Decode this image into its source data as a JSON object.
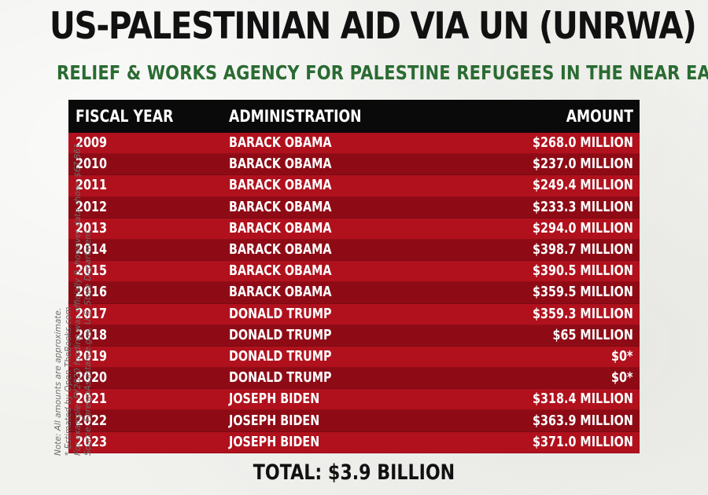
{
  "header": {
    "title": "US-PALESTINIAN AID VIA UN (UNRWA)",
    "subtitle": "RELIEF & WORKS AGENCY FOR PALESTINE REFUGEES IN THE NEAR EAST"
  },
  "table": {
    "columns": [
      "FISCAL YEAR",
      "ADMINISTRATION",
      "AMOUNT"
    ],
    "rows": [
      {
        "year": "2009",
        "administration": "BARACK OBAMA",
        "amount": "$268.0 MILLION"
      },
      {
        "year": "2010",
        "administration": "BARACK OBAMA",
        "amount": "$237.0 MILLION"
      },
      {
        "year": "2011",
        "administration": "BARACK OBAMA",
        "amount": "$249.4 MILLION"
      },
      {
        "year": "2012",
        "administration": "BARACK OBAMA",
        "amount": "$233.3 MILLION"
      },
      {
        "year": "2013",
        "administration": "BARACK OBAMA",
        "amount": "$294.0 MILLION"
      },
      {
        "year": "2014",
        "administration": "BARACK OBAMA",
        "amount": "$398.7 MILLION"
      },
      {
        "year": "2015",
        "administration": "BARACK OBAMA",
        "amount": "$390.5 MILLION"
      },
      {
        "year": "2016",
        "administration": "BARACK OBAMA",
        "amount": "$359.5 MILLION"
      },
      {
        "year": "2017",
        "administration": "DONALD TRUMP",
        "amount": "$359.3 MILLION"
      },
      {
        "year": "2018",
        "administration": "DONALD TRUMP",
        "amount": "$65 MILLION"
      },
      {
        "year": "2019",
        "administration": "DONALD TRUMP",
        "amount": "$0*"
      },
      {
        "year": "2020",
        "administration": "DONALD TRUMP",
        "amount": "$0*"
      },
      {
        "year": "2021",
        "administration": "JOSEPH BIDEN",
        "amount": "$318.4 MILLION"
      },
      {
        "year": "2022",
        "administration": "JOSEPH BIDEN",
        "amount": "$363.9 MILLION"
      },
      {
        "year": "2023",
        "administration": "JOSEPH BIDEN",
        "amount": "$371.0 MILLION"
      }
    ]
  },
  "total": "TOTAL: $3.9 BILLION",
  "notes": [
    "Note: All amounts are approximate.",
    "* Estimated by Open TheBooks.com -",
    "For example: FY2020 funding was officially 0, however data shows $67,861.",
    "Source: ForeignAssistance.gov, U.S. State Department"
  ],
  "colors": {
    "title": "#111111",
    "subtitle": "#2a6b32",
    "header_bg": "#0a0a0a",
    "row_light": "#b0111d",
    "row_dark": "#8e0b16",
    "background": "#f1f1ee"
  }
}
